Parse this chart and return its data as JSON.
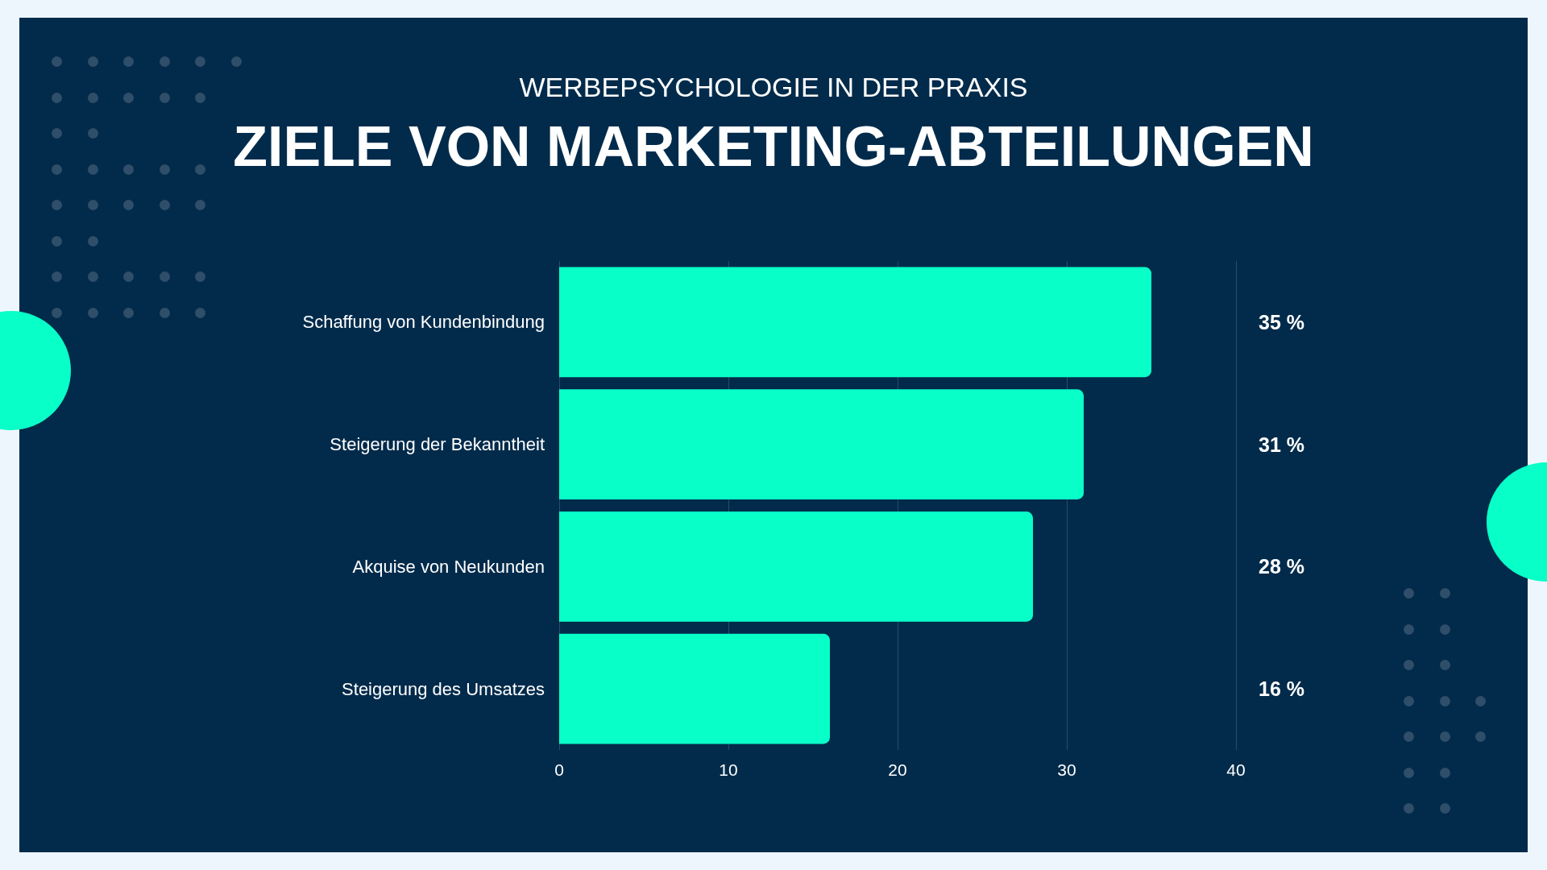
{
  "chart_data": {
    "type": "bar",
    "orientation": "horizontal",
    "title": "ZIELE VON MARKETING-ABTEILUNGEN",
    "subtitle": "WERBEPSYCHOLOGIE IN DER PRAXIS",
    "categories": [
      "Schaffung von Kundenbindung",
      "Steigerung der Bekanntheit",
      "Akquise von Neukunden",
      "Steigerung des Umsatzes"
    ],
    "values": [
      35,
      31,
      28,
      16
    ],
    "color": "#09ffc8",
    "value_labels": [
      "35 %",
      "31 %",
      "28 %",
      "16 %"
    ],
    "xlim": [
      0,
      40
    ],
    "xticks": [
      0,
      10,
      20,
      30,
      40
    ],
    "grid": "x"
  }
}
